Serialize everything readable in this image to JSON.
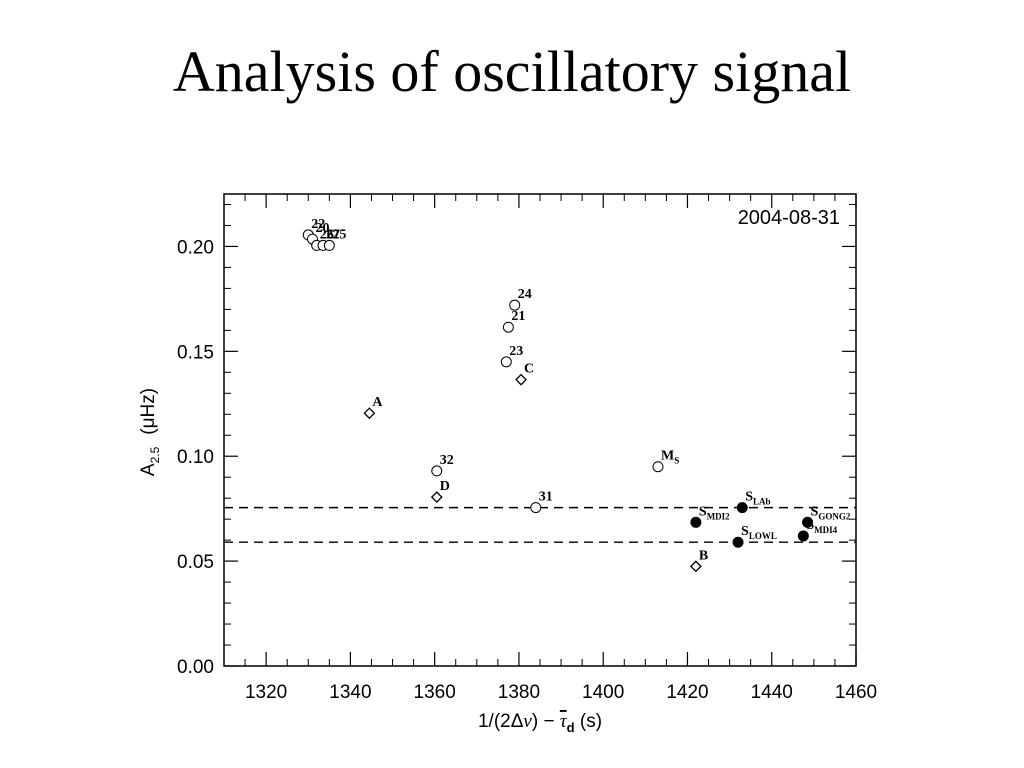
{
  "title": "Analysis of oscillatory signal",
  "chart_data": {
    "type": "scatter",
    "annotation": "2004-08-31",
    "xlabel_parts": {
      "pre": "1/(2Δ",
      "nu": "ν",
      "mid": ") − ",
      "tau": "τ",
      "sub": "d",
      "post": "  (s)"
    },
    "ylabel_parts": {
      "base": "A",
      "sub": "2.5",
      "unit": "(μHz)"
    },
    "xlim": [
      1310,
      1460
    ],
    "ylim": [
      0.0,
      0.225
    ],
    "xticks": [
      1320,
      1340,
      1360,
      1380,
      1400,
      1420,
      1440,
      1460
    ],
    "yticks": [
      0.0,
      0.05,
      0.1,
      0.15,
      0.2
    ],
    "hlines": [
      0.0755,
      0.059
    ],
    "series": [
      {
        "marker": "open-circle",
        "points": [
          {
            "x": 1330.0,
            "y": 0.2055,
            "label": "22"
          },
          {
            "x": 1331.0,
            "y": 0.2035,
            "label": "20"
          },
          {
            "x": 1332.0,
            "y": 0.2005,
            "label": "26"
          },
          {
            "x": 1333.5,
            "y": 0.2005,
            "label": "27"
          },
          {
            "x": 1335.0,
            "y": 0.2005,
            "label": "25"
          },
          {
            "x": 1379.0,
            "y": 0.172,
            "label": "24"
          },
          {
            "x": 1377.5,
            "y": 0.1615,
            "label": "21"
          },
          {
            "x": 1377.0,
            "y": 0.145,
            "label": "23"
          },
          {
            "x": 1360.5,
            "y": 0.093,
            "label": "32"
          },
          {
            "x": 1384.0,
            "y": 0.0755,
            "label": "31"
          },
          {
            "x": 1413.0,
            "y": 0.095,
            "label": "M",
            "sub": "S"
          }
        ]
      },
      {
        "marker": "open-diamond",
        "points": [
          {
            "x": 1344.5,
            "y": 0.1205,
            "label": "A"
          },
          {
            "x": 1380.5,
            "y": 0.1365,
            "label": "C"
          },
          {
            "x": 1360.5,
            "y": 0.0805,
            "label": "D"
          },
          {
            "x": 1422.0,
            "y": 0.0475,
            "label": "B"
          }
        ]
      },
      {
        "marker": "filled-circle",
        "points": [
          {
            "x": 1422.0,
            "y": 0.0685,
            "label": "S",
            "sub": "MDI2"
          },
          {
            "x": 1433.0,
            "y": 0.0755,
            "label": "S",
            "sub": "LAb"
          },
          {
            "x": 1432.0,
            "y": 0.059,
            "label": "S",
            "sub": "LOWL"
          },
          {
            "x": 1447.5,
            "y": 0.062,
            "label": "S",
            "sub": "MDI4"
          },
          {
            "x": 1448.5,
            "y": 0.0685,
            "label": "S",
            "sub": "GONG2"
          }
        ]
      }
    ]
  }
}
